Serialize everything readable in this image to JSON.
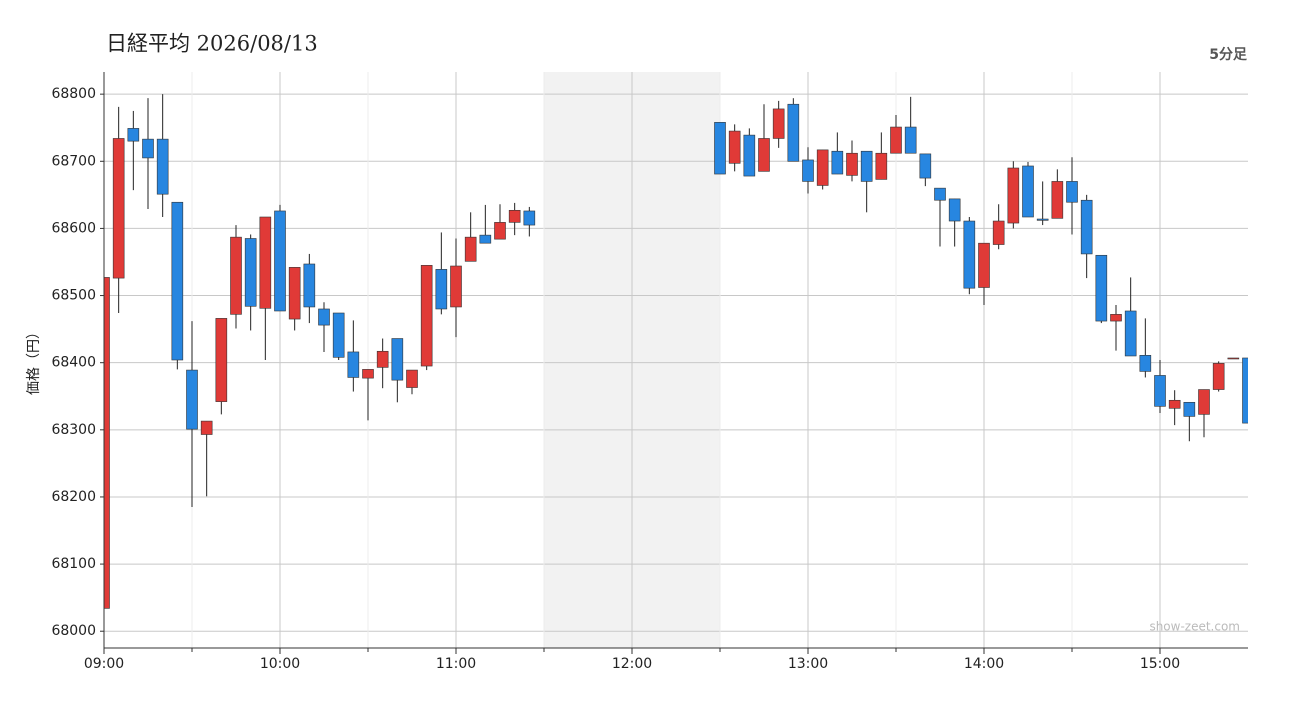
{
  "chart_data": {
    "type": "candlestick",
    "title": "日経平均 2026/08/13",
    "interval_label": "5分足",
    "ylabel": "価格（円）",
    "watermark": "show-zeet.com",
    "x": [
      "09:00",
      "09:05",
      "09:10",
      "09:15",
      "09:20",
      "09:25",
      "09:30",
      "09:35",
      "09:40",
      "09:45",
      "09:50",
      "09:55",
      "10:00",
      "10:05",
      "10:10",
      "10:15",
      "10:20",
      "10:25",
      "10:30",
      "10:35",
      "10:40",
      "10:45",
      "10:50",
      "10:55",
      "11:00",
      "11:05",
      "11:10",
      "11:15",
      "11:20",
      "11:25",
      "12:30",
      "12:35",
      "12:40",
      "12:45",
      "12:50",
      "12:55",
      "13:00",
      "13:05",
      "13:10",
      "13:15",
      "13:20",
      "13:25",
      "13:30",
      "13:35",
      "13:40",
      "13:45",
      "13:50",
      "13:55",
      "14:00",
      "14:05",
      "14:10",
      "14:15",
      "14:20",
      "14:25",
      "14:30",
      "14:35",
      "14:40",
      "14:45",
      "14:50",
      "14:55",
      "15:00",
      "15:05",
      "15:10",
      "15:15",
      "15:20",
      "15:25",
      "15:30"
    ],
    "open": [
      68034,
      68526,
      68749,
      68733,
      68733,
      68639,
      68389,
      68293,
      68342,
      68472,
      68585,
      68481,
      68626,
      68465,
      68547,
      68480,
      68474,
      68416,
      68377,
      68393,
      68436,
      68363,
      68395,
      68539,
      68483,
      68551,
      68590,
      68584,
      68609,
      68626,
      68758,
      68697,
      68739,
      68685,
      68734,
      68785,
      68702,
      68664,
      68715,
      68679,
      68715,
      68673,
      68712,
      68751,
      68711,
      68660,
      68644,
      68611,
      68512,
      68576,
      68608,
      68693,
      68614,
      68615,
      68670,
      68642,
      68560,
      68462,
      68477,
      68411,
      68381,
      68332,
      68341,
      68323,
      68360,
      68407,
      68407
    ],
    "high": [
      68530,
      68781,
      68775,
      68794,
      68800,
      68639,
      68462,
      68313,
      68466,
      68605,
      68591,
      68617,
      68635,
      68542,
      68562,
      68490,
      68474,
      68463,
      68390,
      68436,
      68436,
      68389,
      68545,
      68594,
      68585,
      68624,
      68635,
      68636,
      68638,
      68632,
      68758,
      68755,
      68749,
      68785,
      68790,
      68794,
      68721,
      68717,
      68743,
      68731,
      68715,
      68743,
      68769,
      68796,
      68711,
      68660,
      68644,
      68617,
      68578,
      68636,
      68700,
      68699,
      68670,
      68688,
      68706,
      68650,
      68560,
      68486,
      68527,
      68466,
      68404,
      68359,
      68341,
      68360,
      68402,
      68407,
      68407
    ],
    "low": [
      68030,
      68474,
      68657,
      68629,
      68617,
      68390,
      68185,
      68201,
      68323,
      68451,
      68448,
      68404,
      68477,
      68448,
      68459,
      68416,
      68404,
      68357,
      68314,
      68362,
      68341,
      68353,
      68389,
      68472,
      68438,
      68551,
      68578,
      68584,
      68590,
      68588,
      68681,
      68685,
      68678,
      68685,
      68720,
      68700,
      68652,
      68658,
      68681,
      68670,
      68624,
      68673,
      68712,
      68712,
      68663,
      68573,
      68573,
      68502,
      68486,
      68569,
      68600,
      68617,
      68605,
      68615,
      68591,
      68526,
      68459,
      68418,
      68410,
      68378,
      68325,
      68307,
      68283,
      68289,
      68357,
      68407,
      68310
    ],
    "close": [
      68527,
      68734,
      68730,
      68705,
      68651,
      68404,
      68301,
      68313,
      68466,
      68587,
      68484,
      68617,
      68477,
      68542,
      68483,
      68456,
      68408,
      68378,
      68390,
      68417,
      68374,
      68389,
      68545,
      68480,
      68544,
      68587,
      68578,
      68609,
      68627,
      68605,
      68681,
      68745,
      68678,
      68734,
      68778,
      68700,
      68670,
      68717,
      68681,
      68712,
      68670,
      68712,
      68751,
      68712,
      68675,
      68642,
      68611,
      68511,
      68578,
      68611,
      68690,
      68617,
      68612,
      68670,
      68639,
      68562,
      68462,
      68472,
      68410,
      68387,
      68335,
      68344,
      68320,
      68360,
      68399,
      68407,
      68310
    ],
    "up_color": "#e03a37",
    "down_color": "#2786e0",
    "shade": [
      "11:30",
      "12:30"
    ],
    "shade_color": "#f2f2f2",
    "xlim": [
      "09:00",
      "15:30"
    ],
    "xticks": [
      "09:00",
      "10:00",
      "11:00",
      "12:00",
      "13:00",
      "14:00",
      "15:00"
    ],
    "ylim": [
      67975,
      68833
    ],
    "yticks": [
      68000,
      68100,
      68200,
      68300,
      68400,
      68500,
      68600,
      68700,
      68800
    ],
    "grid": true
  }
}
